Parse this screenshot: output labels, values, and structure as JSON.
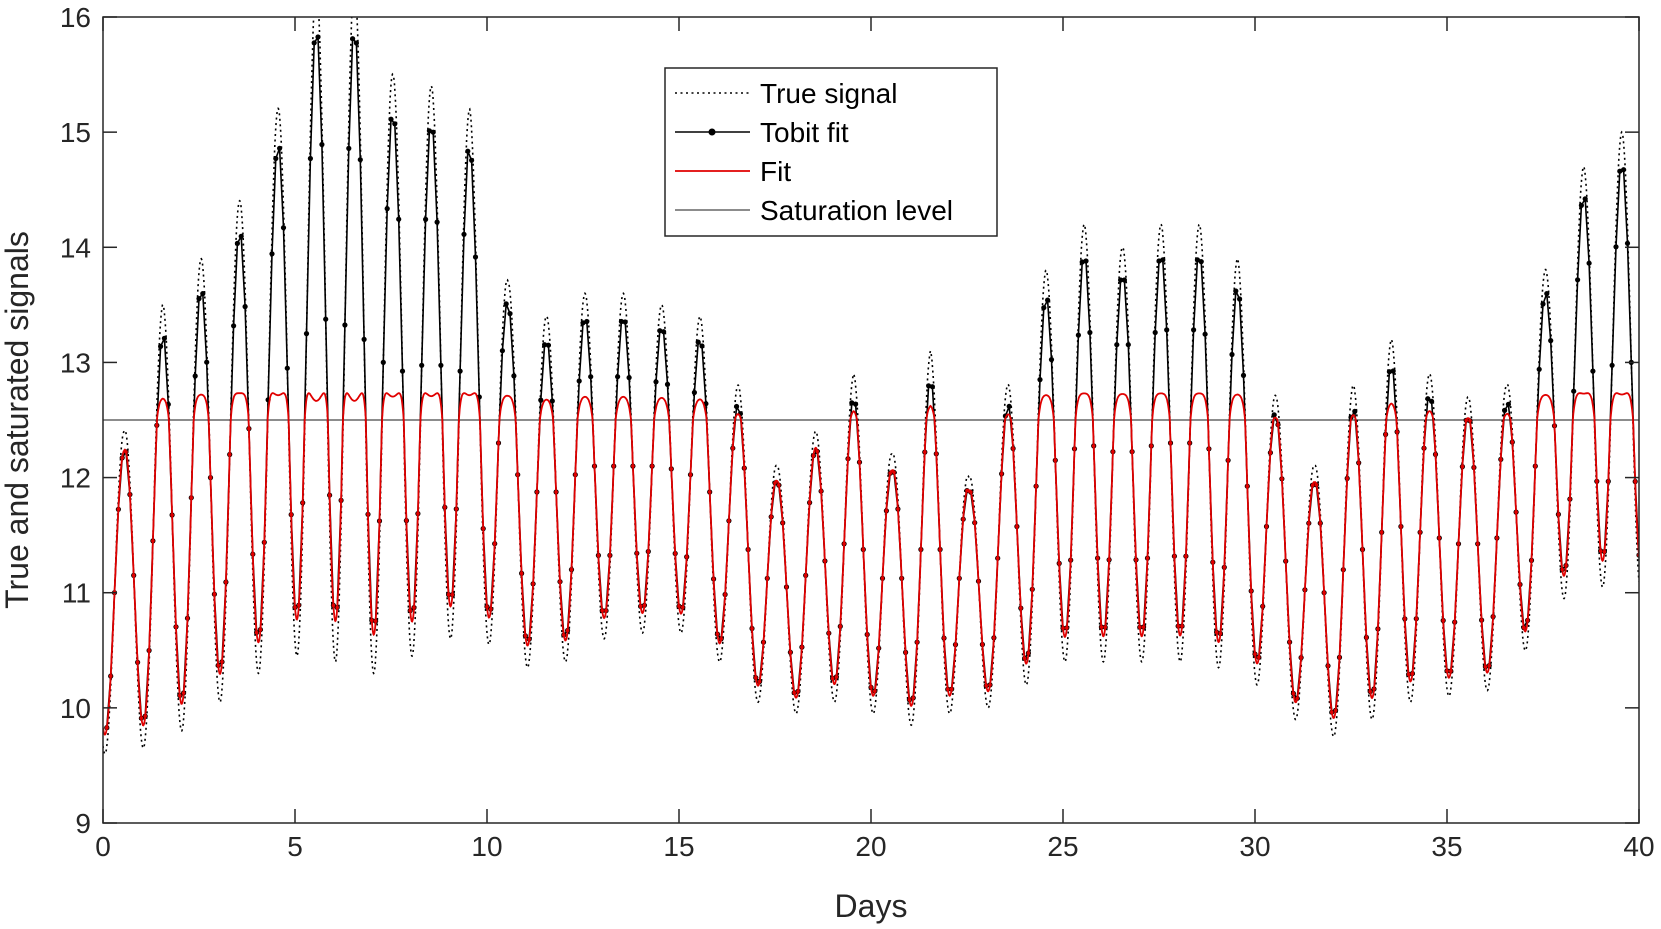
{
  "chart_data": {
    "type": "line",
    "title": "",
    "xlabel": "Days",
    "ylabel": "True and saturated signals",
    "xlim": [
      0,
      40
    ],
    "ylim": [
      9,
      16
    ],
    "xticks": [
      0,
      5,
      10,
      15,
      20,
      25,
      30,
      35,
      40
    ],
    "yticks": [
      9,
      10,
      11,
      12,
      13,
      14,
      15,
      16
    ],
    "xtick_labels": [
      "0",
      "5",
      "10",
      "15",
      "20",
      "25",
      "30",
      "35",
      "40"
    ],
    "ytick_labels": [
      "9",
      "10",
      "11",
      "12",
      "13",
      "14",
      "15",
      "16"
    ],
    "grid": false,
    "legend_position": "top-center",
    "saturation_level": 12.5,
    "signal_model": {
      "period_days": 1,
      "peak_phase_days": 0.55,
      "amplitude_cycles": [
        1.4,
        1.9,
        2.0,
        2.1,
        2.4,
        2.9,
        3.0,
        2.6,
        2.4,
        2.3,
        1.6,
        1.6,
        1.5,
        1.5,
        1.4,
        1.4,
        1.3,
        1.1,
        1.2,
        1.4,
        1.2,
        1.6,
        1.0,
        1.4,
        1.7,
        1.9,
        1.8,
        1.9,
        1.9,
        1.8,
        1.3,
        1.2,
        1.5,
        1.6,
        1.4,
        1.3,
        1.3,
        1.5,
        1.8,
        2.0,
        2.0
      ],
      "midline_cycles": [
        11.0,
        11.6,
        11.9,
        12.3,
        12.8,
        13.4,
        13.3,
        12.9,
        13.0,
        12.9,
        12.1,
        11.8,
        12.1,
        12.1,
        12.1,
        12.0,
        11.5,
        11.0,
        11.2,
        11.5,
        11.0,
        11.5,
        11.0,
        11.4,
        12.1,
        12.3,
        12.2,
        12.3,
        12.3,
        12.1,
        11.4,
        10.9,
        11.3,
        11.6,
        11.5,
        11.4,
        11.5,
        12.3,
        12.9,
        13.0,
        13.0
      ]
    },
    "series": [
      {
        "name": "True signal",
        "color": "#000000",
        "style": "dotted"
      },
      {
        "name": "Tobit fit",
        "color": "#000000",
        "style": "solid-markers"
      },
      {
        "name": "Fit",
        "color": "#e00000",
        "style": "solid"
      },
      {
        "name": "Saturation level",
        "color": "#7f7f7f",
        "style": "solid",
        "y": 12.5
      }
    ]
  }
}
